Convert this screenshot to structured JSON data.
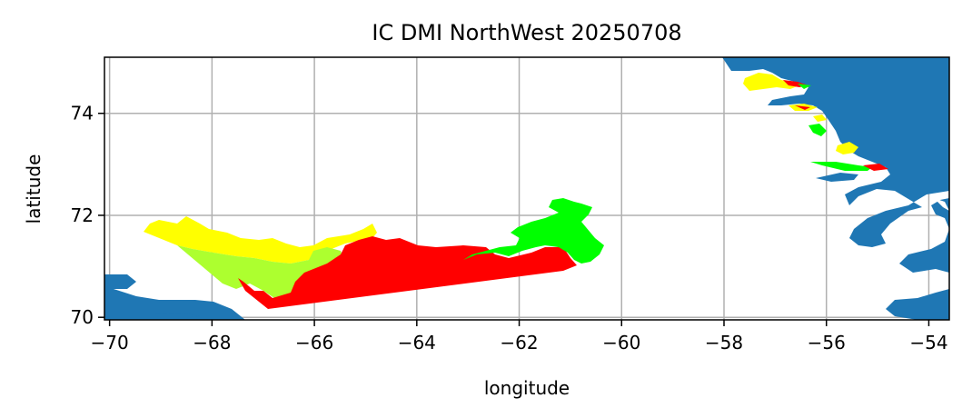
{
  "chart_data": {
    "type": "map",
    "title": "IC DMI NorthWest 20250708",
    "xlabel": "longitude",
    "ylabel": "latitude",
    "xlim": [
      -70.1,
      -53.6
    ],
    "ylim": [
      69.95,
      75.1
    ],
    "xticks": [
      -70,
      -68,
      -66,
      -64,
      -62,
      -60,
      -58,
      -56,
      -54
    ],
    "yticks": [
      70,
      72,
      74
    ],
    "xtick_labels": [
      "−70",
      "−68",
      "−66",
      "−64",
      "−62",
      "−60",
      "−58",
      "−56",
      "−54"
    ],
    "ytick_labels": [
      "70",
      "72",
      "74"
    ],
    "grid": true,
    "colors": {
      "land": "#1f77b4",
      "ice_red": "#ff0000",
      "ice_yellow": "#ffff00",
      "ice_greenyellow": "#adff2f",
      "ice_lime": "#00ff00",
      "grid": "#b0b0b0"
    }
  }
}
